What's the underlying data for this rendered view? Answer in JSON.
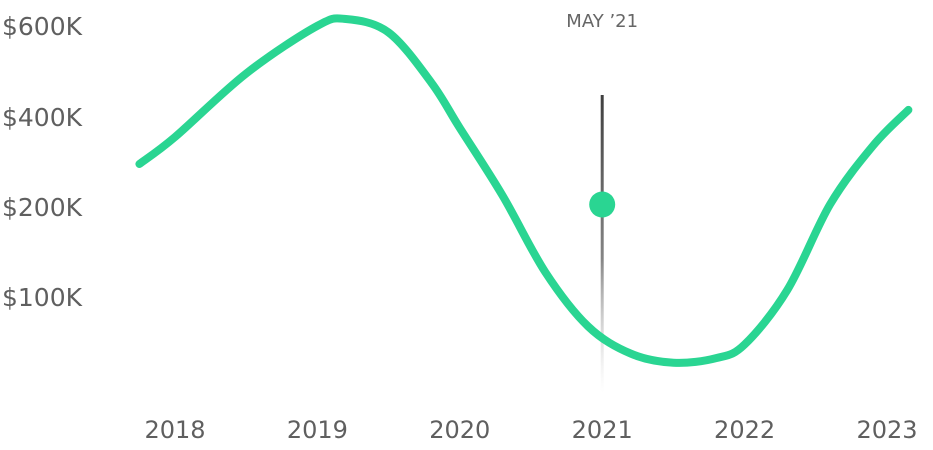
{
  "chart_data": {
    "type": "line",
    "title": "",
    "xlabel": "",
    "ylabel": "",
    "x_ticks": [
      {
        "label": "2018",
        "value": 2018
      },
      {
        "label": "2019",
        "value": 2019
      },
      {
        "label": "2020",
        "value": 2020
      },
      {
        "label": "2021",
        "value": 2021
      },
      {
        "label": "2022",
        "value": 2022
      },
      {
        "label": "2023",
        "value": 2023
      }
    ],
    "y_ticks": [
      {
        "label": "$600K",
        "value": 600000
      },
      {
        "label": "$400K",
        "value": 400000
      },
      {
        "label": "$200K",
        "value": 200000
      },
      {
        "label": "$100K",
        "value": 100000
      }
    ],
    "grid": false,
    "legend": "none",
    "line_color": "#2ad592",
    "series": [
      {
        "x": [
          2017.75,
          2018.0,
          2018.5,
          2019.0,
          2019.2,
          2019.5,
          2019.8,
          2020.0,
          2020.3,
          2020.6,
          2020.9,
          2021.2,
          2021.5,
          2021.8,
          2022.0,
          2022.3,
          2022.6,
          2022.9,
          2023.15
        ],
        "y": [
          300000,
          360000,
          500000,
          605000,
          620000,
          590000,
          480000,
          380000,
          230000,
          130000,
          70000,
          40000,
          30000,
          35000,
          50000,
          110000,
          210000,
          340000,
          420000
        ]
      }
    ],
    "marker": {
      "label": "MAY ’21",
      "x": 2021.0,
      "y": 210000,
      "point_color": "#2ad592",
      "line_color": "#4a4a4a"
    }
  }
}
